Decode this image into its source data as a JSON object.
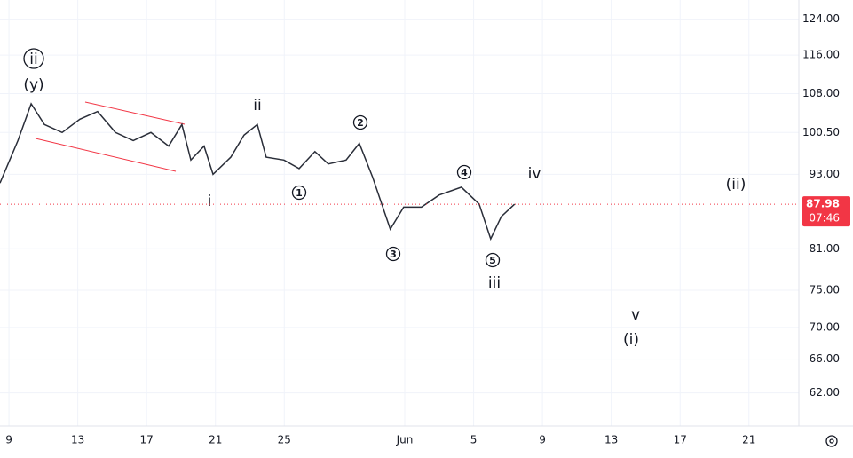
{
  "chart_data": {
    "type": "line",
    "log_scale": true,
    "grid": true,
    "color": "#2a2e39",
    "x": [
      8.48,
      9.52,
      10.29,
      11.06,
      12.09,
      13.12,
      14.15,
      15.19,
      16.22,
      17.25,
      18.28,
      19.05,
      19.57,
      20.34,
      20.86,
      21.89,
      22.66,
      23.43,
      23.95,
      24.98,
      25.86,
      26.78,
      27.56,
      28.59,
      29.36,
      30.13,
      31.16,
      31.94,
      32.97,
      34.0,
      35.29,
      36.32,
      36.99,
      37.61,
      38.38
    ],
    "values": [
      91.5,
      99,
      106,
      102,
      100.5,
      103,
      104.5,
      100.5,
      99,
      100.5,
      98,
      102,
      95.5,
      98,
      93,
      96,
      100,
      102,
      96,
      95.5,
      94,
      97,
      94.8,
      95.5,
      98.5,
      92.5,
      84,
      87.5,
      87.5,
      89.5,
      90.8,
      88,
      82.5,
      86,
      87.98
    ],
    "xlim": [
      8.48,
      54.9
    ],
    "xticks": [
      9,
      13,
      17,
      21,
      25,
      {
        "value": 32,
        "label": "Jun"
      },
      {
        "value": 36,
        "label": "5"
      },
      {
        "value": 40,
        "label": "9"
      },
      {
        "value": 44,
        "label": "13"
      },
      {
        "value": 48,
        "label": "17"
      },
      {
        "value": 52,
        "label": "21"
      }
    ],
    "ylim": [
      58.3,
      128.5
    ],
    "yticks": [
      {
        "value": 124,
        "label": "124.00"
      },
      {
        "value": 116,
        "label": "116.00"
      },
      {
        "value": 108,
        "label": "108.00"
      },
      {
        "value": 100.5,
        "label": "100.50"
      },
      {
        "value": 93,
        "label": "93.00"
      },
      {
        "value": 81,
        "label": "81.00"
      },
      {
        "value": 75,
        "label": "75.00"
      },
      {
        "value": 70,
        "label": "70.00"
      },
      {
        "value": 66,
        "label": "66.00"
      },
      {
        "value": 62,
        "label": "62.00"
      }
    ],
    "last_price": 87.98,
    "countdown": "07:46",
    "annotations": [
      "ii",
      "(y)",
      "ii",
      "i",
      "1",
      "2",
      "3",
      "4",
      "5",
      "iii",
      "iv",
      "v",
      "(i)",
      "(ii)"
    ]
  }
}
